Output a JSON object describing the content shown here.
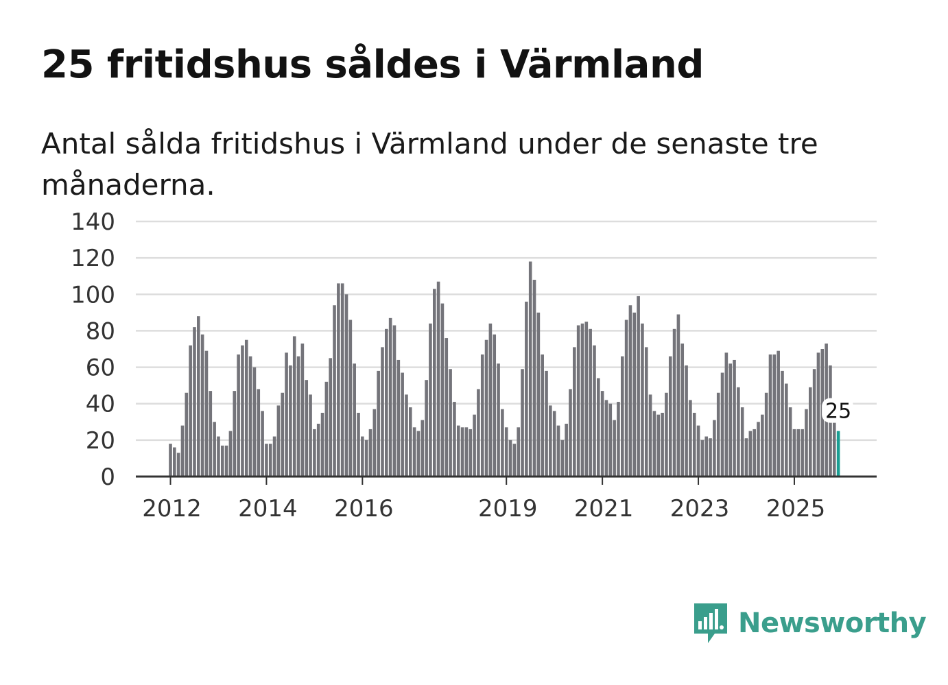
{
  "title": "25 fritidshus såldes i Värmland",
  "subtitle": "Antal sålda fritidshus i Värmland under de senaste tre månaderna.",
  "brand": {
    "name": "Newsworthy",
    "icon": "newsworthy-logo-icon",
    "color": "#3a9e8c"
  },
  "chart_data": {
    "type": "bar",
    "title": "25 fritidshus såldes i Värmland",
    "subtitle": "Antal sålda fritidshus i Värmland under de senaste tre månaderna.",
    "xlabel": "",
    "ylabel": "",
    "ylim": [
      0,
      140
    ],
    "yticks": [
      0,
      20,
      40,
      60,
      80,
      100,
      120,
      140
    ],
    "xticks": [
      "2012",
      "2014",
      "2016",
      "2019",
      "2021",
      "2023",
      "2025"
    ],
    "grid": true,
    "bar_color": "#74747a",
    "highlight_color": "#1a9e93",
    "start": "2012-01",
    "frequency": "monthly",
    "values": [
      18,
      16,
      13,
      28,
      46,
      72,
      82,
      88,
      78,
      69,
      47,
      30,
      22,
      17,
      17,
      25,
      47,
      67,
      72,
      75,
      66,
      60,
      48,
      36,
      18,
      18,
      22,
      39,
      46,
      68,
      61,
      77,
      66,
      73,
      53,
      45,
      26,
      29,
      35,
      52,
      65,
      94,
      106,
      106,
      100,
      86,
      62,
      35,
      22,
      20,
      26,
      37,
      58,
      71,
      81,
      87,
      83,
      64,
      57,
      45,
      38,
      27,
      25,
      31,
      53,
      84,
      103,
      107,
      95,
      76,
      59,
      41,
      28,
      27,
      27,
      26,
      34,
      48,
      67,
      75,
      84,
      78,
      62,
      37,
      27,
      20,
      18,
      27,
      59,
      96,
      118,
      108,
      90,
      67,
      58,
      39,
      36,
      28,
      20,
      29,
      48,
      71,
      83,
      84,
      85,
      81,
      72,
      54,
      47,
      42,
      40,
      31,
      41,
      66,
      86,
      94,
      90,
      99,
      84,
      71,
      45,
      36,
      34,
      35,
      46,
      66,
      81,
      89,
      73,
      61,
      42,
      35,
      28,
      20,
      22,
      21,
      31,
      46,
      57,
      68,
      62,
      64,
      49,
      38,
      21,
      25,
      26,
      30,
      34,
      46,
      67,
      67,
      69,
      58,
      51,
      38,
      26,
      26,
      26,
      37,
      49,
      59,
      68,
      70,
      73,
      61,
      31,
      25
    ],
    "highlight_label": "25"
  }
}
